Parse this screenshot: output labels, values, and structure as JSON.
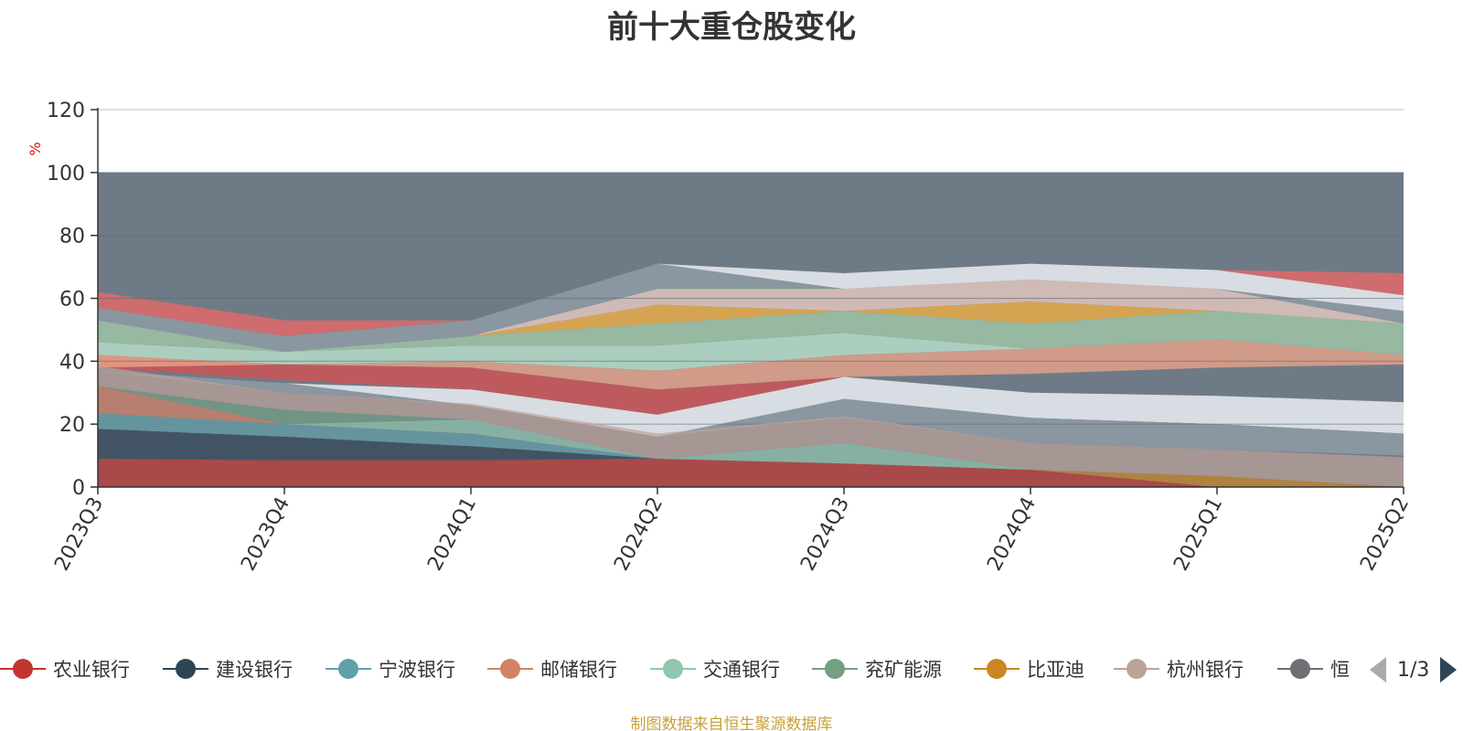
{
  "chart_data": {
    "type": "area",
    "title": "前十大重仓股变化",
    "ylabel": "%",
    "xlabel": "",
    "ylim": [
      0,
      120
    ],
    "y_ticks": [
      "0",
      "20",
      "40",
      "60",
      "80",
      "100",
      "120"
    ],
    "categories": [
      "2023Q3",
      "2023Q4",
      "2024Q1",
      "2024Q2",
      "2024Q3",
      "2024Q4",
      "2025Q1",
      "2025Q2"
    ],
    "stacked": true,
    "grid": true,
    "legend_position": "bottom",
    "series": [
      {
        "name": "农业银行",
        "color": "#c23531",
        "values": [
          9.0,
          8.5,
          8.5,
          9.0,
          7.5,
          5.5,
          0,
          0
        ]
      },
      {
        "name": "建设银行",
        "color": "#2f4554",
        "values": [
          9.5,
          7.5,
          4.5,
          0,
          0,
          0,
          0,
          0
        ]
      },
      {
        "name": "宁波银行",
        "color": "#61a0a8",
        "values": [
          5.0,
          4.0,
          4.0,
          0,
          0,
          0,
          0,
          0
        ]
      },
      {
        "name": "邮储银行",
        "color": "#d48265",
        "values": [
          8.5,
          0,
          0,
          0,
          0,
          0,
          0,
          0
        ]
      },
      {
        "name": "交通银行",
        "color": "#91c7ae",
        "values": [
          0,
          0,
          4.5,
          0,
          6.5,
          0,
          0,
          0
        ]
      },
      {
        "name": "兖矿能源",
        "color": "#749f83",
        "values": [
          0,
          4.5,
          0,
          0,
          0,
          0,
          0,
          0
        ]
      },
      {
        "name": "比亚迪",
        "color": "#ca8622",
        "values": [
          0,
          0,
          0,
          0,
          0,
          0,
          3.5,
          0
        ]
      },
      {
        "name": "杭州银行",
        "color": "#bda29a",
        "values": [
          6.5,
          5.5,
          5.0,
          8.0,
          8.5,
          8.5,
          8.5,
          9.5
        ]
      }
    ]
  },
  "legend": {
    "items": [
      {
        "label": "农业银行",
        "color": "#c23531"
      },
      {
        "label": "建设银行",
        "color": "#2f4554"
      },
      {
        "label": "宁波银行",
        "color": "#61a0a8"
      },
      {
        "label": "邮储银行",
        "color": "#d48265"
      },
      {
        "label": "交通银行",
        "color": "#91c7ae"
      },
      {
        "label": "兖矿能源",
        "color": "#749f83"
      },
      {
        "label": "比亚迪",
        "color": "#ca8622"
      },
      {
        "label": "杭州银行",
        "color": "#bda29a"
      },
      {
        "label": "恒",
        "color": "#6e7074"
      }
    ],
    "page": "1/3"
  },
  "source_text": "制图数据来自恒生聚源数据库"
}
